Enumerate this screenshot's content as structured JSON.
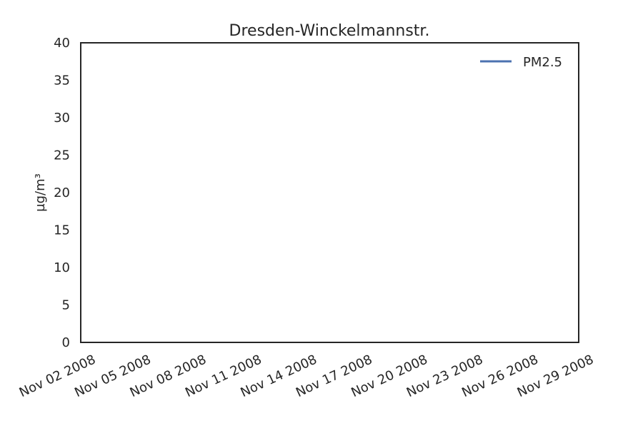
{
  "chart_data": {
    "type": "line",
    "title": "Dresden-Winckelmannstr.",
    "xlabel": "",
    "ylabel": "µg/m³",
    "ylim": [
      0,
      40
    ],
    "yticks": [
      "0",
      "5",
      "10",
      "15",
      "20",
      "25",
      "30",
      "35",
      "40"
    ],
    "xticks": [
      "Nov 02 2008",
      "Nov 05 2008",
      "Nov 08 2008",
      "Nov 11 2008",
      "Nov 14 2008",
      "Nov 17 2008",
      "Nov 20 2008",
      "Nov 23 2008",
      "Nov 26 2008",
      "Nov 29 2008"
    ],
    "series": [
      {
        "name": "PM2.5",
        "color": "#4c72b0",
        "values": []
      }
    ],
    "grid": false,
    "legend": "top-right"
  }
}
